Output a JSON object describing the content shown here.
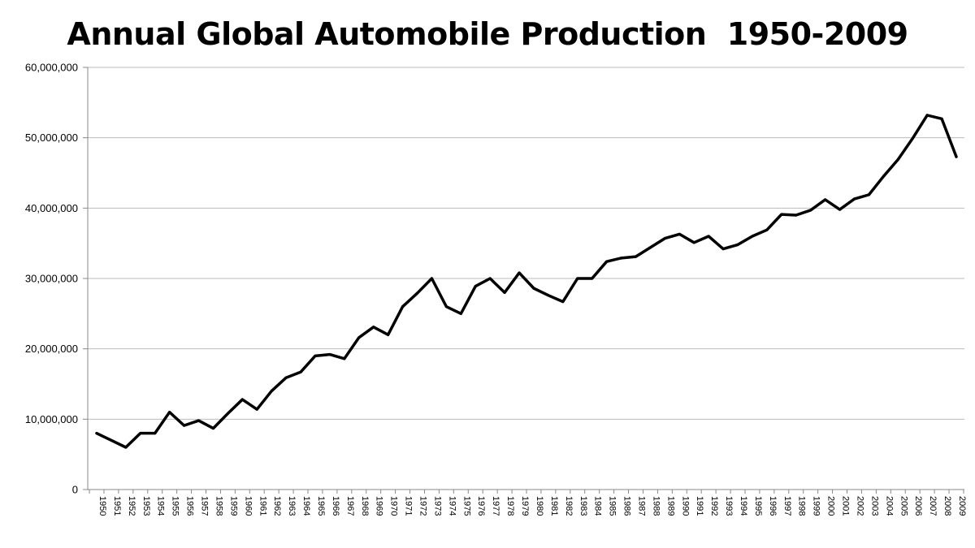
{
  "chart_data": {
    "type": "line",
    "title": "Annual Global Automobile Production  1950-2009",
    "xlabel": "",
    "ylabel": "",
    "ylim": [
      0,
      60000000
    ],
    "yticks": [
      "0",
      "10,000,000",
      "20,000,000",
      "30,000,000",
      "40,000,000",
      "50,000,000",
      "60,000,000"
    ],
    "ytick_values": [
      0,
      10000000,
      20000000,
      30000000,
      40000000,
      50000000,
      60000000
    ],
    "grid": "horizontal",
    "legend": "none",
    "line_color": "#000000",
    "grid_color": "#bbbbbb",
    "categories": [
      "1950",
      "1951",
      "1952",
      "1953",
      "1954",
      "1955",
      "1956",
      "1957",
      "1958",
      "1959",
      "1960",
      "1961",
      "1962",
      "1963",
      "1964",
      "1965",
      "1966",
      "1967",
      "1968",
      "1969",
      "1970",
      "1971",
      "1972",
      "1973",
      "1974",
      "1975",
      "1976",
      "1977",
      "1978",
      "1979",
      "1980",
      "1981",
      "1982",
      "1983",
      "1984",
      "1985",
      "1986",
      "1987",
      "1988",
      "1989",
      "1990",
      "1991",
      "1992",
      "1993",
      "1994",
      "1995",
      "1996",
      "1997",
      "1998",
      "1999",
      "2000",
      "2001",
      "2002",
      "2003",
      "2004",
      "2005",
      "2006",
      "2007",
      "2008",
      "2009"
    ],
    "series": [
      {
        "values": [
          8000000,
          7000000,
          6000000,
          8000000,
          8000000,
          11000000,
          9100000,
          9800000,
          8700000,
          10800000,
          12800000,
          11400000,
          14000000,
          15900000,
          16700000,
          19000000,
          19200000,
          18600000,
          21600000,
          23100000,
          22000000,
          26000000,
          27900000,
          30000000,
          26000000,
          25000000,
          28900000,
          30000000,
          28000000,
          30800000,
          28600000,
          27600000,
          26700000,
          30000000,
          30000000,
          32400000,
          32900000,
          33100000,
          34400000,
          35700000,
          36300000,
          35100000,
          36000000,
          34200000,
          34800000,
          36000000,
          36900000,
          39100000,
          39000000,
          39700000,
          41200000,
          39800000,
          41300000,
          41900000,
          44500000,
          46900000,
          49900000,
          53200000,
          52700000,
          47300000
        ]
      }
    ]
  }
}
